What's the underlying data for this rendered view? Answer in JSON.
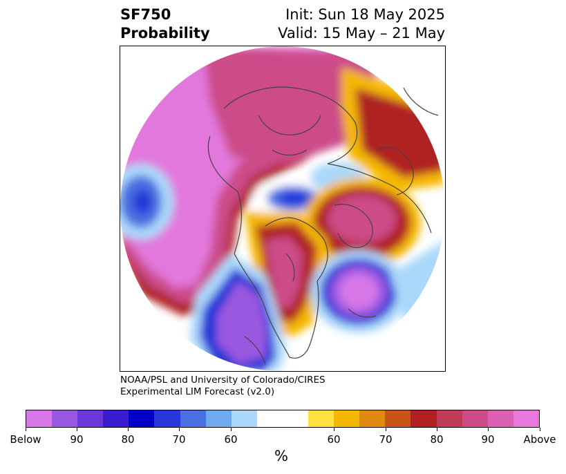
{
  "title": {
    "variable": "SF750",
    "subtitle": "Probability",
    "init": "Init: Sun 18 May 2025",
    "valid": "Valid: 15 May – 21 May"
  },
  "credit": {
    "line1": "NOAA/PSL and University of Colorado/CIRES",
    "line2": "Experimental LIM Forecast (v2.0)"
  },
  "colorbar": {
    "colors": [
      "#d878e8",
      "#9a58e0",
      "#6a38d8",
      "#3a1cd0",
      "#0000c8",
      "#2838d8",
      "#4870e0",
      "#70aaee",
      "#aad8fa",
      "#ffffff",
      "#ffe040",
      "#f5b800",
      "#e08a10",
      "#c85418",
      "#b02020",
      "#c03c58",
      "#cc4c88",
      "#dc60b4",
      "#e878dc"
    ],
    "tick_labels": [
      "Below",
      "90",
      "80",
      "70",
      "60",
      "60",
      "70",
      "80",
      "90",
      "Above"
    ],
    "unit": "%"
  },
  "map": {
    "projection": "north-polar-stereographic",
    "palette": {
      "above_strong": "#e278dc",
      "above_mid": "#cc4c88",
      "above_low": "#b02020",
      "neutral_warm": "#f5b800",
      "neutral": "#ffffff",
      "below_low": "#aad8fa",
      "below_mid": "#2838d8",
      "below_strong": "#9a58e0",
      "coastline": "#444444"
    }
  }
}
